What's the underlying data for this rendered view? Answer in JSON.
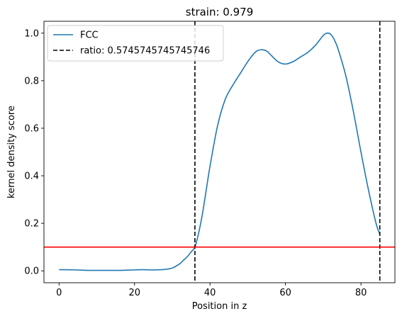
{
  "chart_data": {
    "type": "line",
    "title": "strain: 0.979",
    "xlabel": "Position in z",
    "ylabel": "kernel density score",
    "xlim": [
      -4,
      89
    ],
    "ylim": [
      -0.05,
      1.05
    ],
    "xticks": [
      0,
      20,
      40,
      60,
      80
    ],
    "xtick_labels": [
      "0",
      "20",
      "40",
      "60",
      "80"
    ],
    "yticks": [
      0.0,
      0.2,
      0.4,
      0.6,
      0.8,
      1.0
    ],
    "ytick_labels": [
      "0.0",
      "0.2",
      "0.4",
      "0.6",
      "0.8",
      "1.0"
    ],
    "grid": false,
    "legend_position": "top-left",
    "series": [
      {
        "name": "FCC",
        "style": "solid",
        "color": "#1f77b4",
        "x": [
          0,
          4,
          8,
          12,
          16,
          20,
          22,
          24,
          26,
          28,
          30,
          32,
          33,
          34,
          35,
          36,
          37,
          38,
          39,
          40,
          42,
          44,
          46,
          48,
          50,
          52,
          53.5,
          55,
          56,
          58,
          60,
          62,
          64,
          66,
          68,
          70,
          71,
          72,
          73,
          74,
          76,
          78,
          80,
          82,
          84,
          85
        ],
        "y": [
          0.005,
          0.004,
          0.002,
          0.002,
          0.002,
          0.004,
          0.005,
          0.004,
          0.004,
          0.006,
          0.012,
          0.03,
          0.045,
          0.06,
          0.08,
          0.1,
          0.16,
          0.24,
          0.34,
          0.44,
          0.61,
          0.72,
          0.78,
          0.83,
          0.88,
          0.92,
          0.93,
          0.925,
          0.91,
          0.88,
          0.87,
          0.88,
          0.9,
          0.92,
          0.95,
          0.99,
          1.0,
          0.995,
          0.97,
          0.93,
          0.82,
          0.67,
          0.5,
          0.34,
          0.2,
          0.155
        ]
      }
    ],
    "vlines": [
      {
        "name": "ratio: 0.5745745745745746",
        "x": [
          36,
          85
        ],
        "style": "dashed",
        "color": "#000000"
      }
    ],
    "hlines": [
      {
        "y": 0.1,
        "style": "solid",
        "color": "#ff0000"
      }
    ]
  }
}
